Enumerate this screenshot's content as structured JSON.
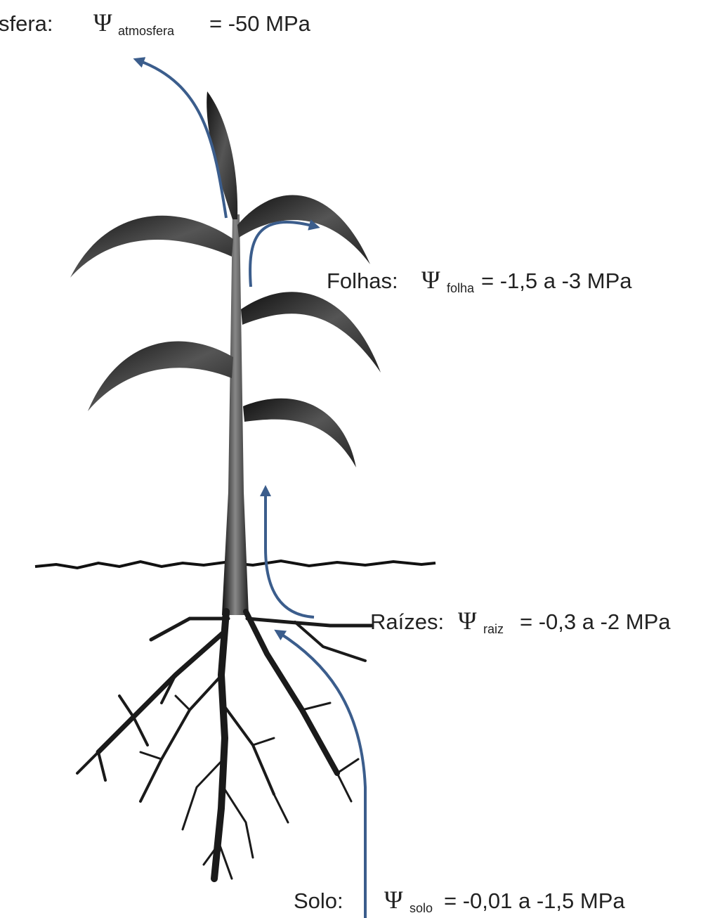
{
  "labels": [
    {
      "name": "sfera:",
      "symbol": "Ψ",
      "subscript": "atmosfera",
      "value": "= -50 MPa"
    },
    {
      "name": "Folhas:",
      "symbol": "Ψ",
      "subscript": "folha",
      "value": "= -1,5 a -3 MPa"
    },
    {
      "name": "Raízes:",
      "symbol": "Ψ",
      "subscript": "raiz",
      "value": "= -0,3 a -2 MPa"
    },
    {
      "name": "Solo:",
      "symbol": "Ψ",
      "subscript": "solo",
      "value": "= -0,01 a -1,5 MPa"
    }
  ]
}
